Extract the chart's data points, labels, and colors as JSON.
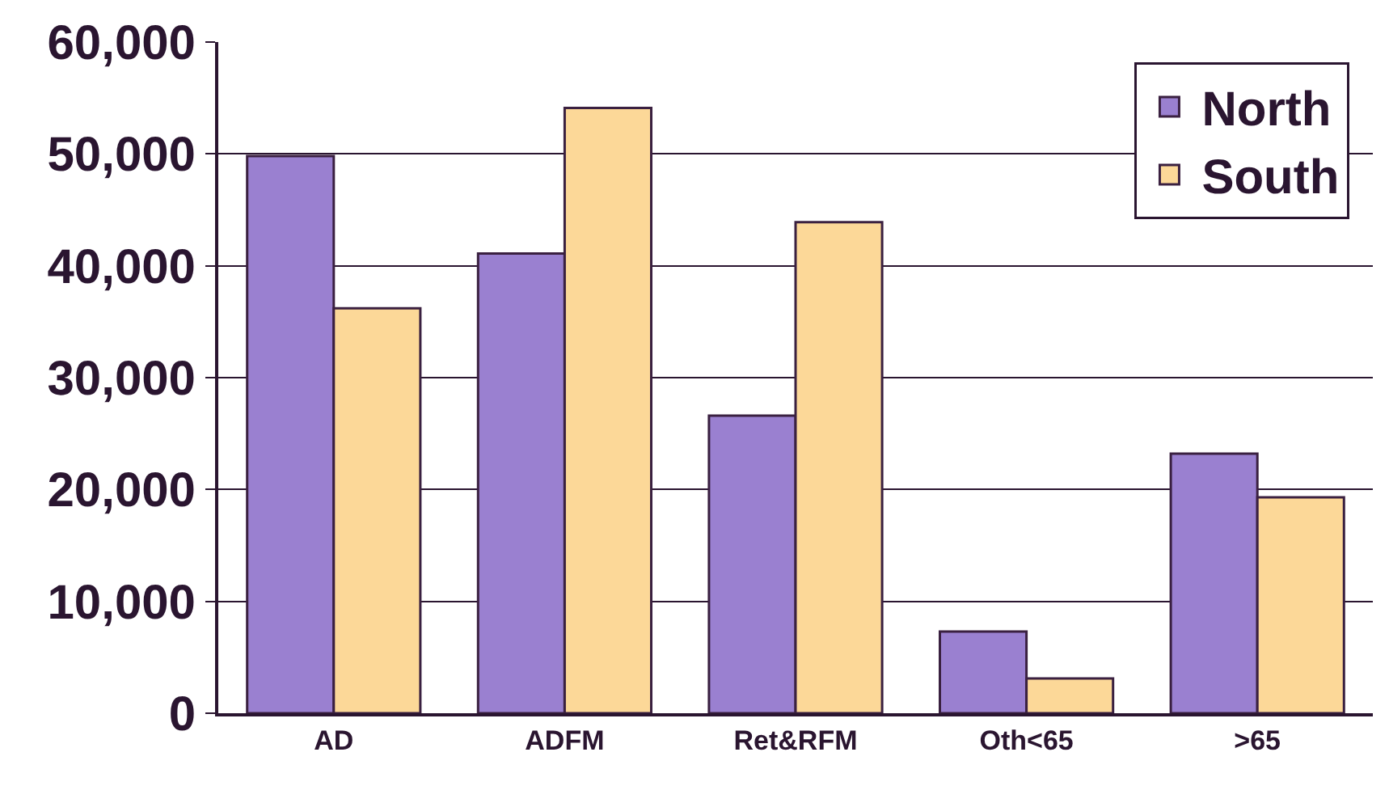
{
  "chart_data": {
    "type": "bar",
    "categories": [
      "AD",
      "ADFM",
      "Ret&RFM",
      "Oth<65",
      ">65"
    ],
    "series": [
      {
        "name": "North",
        "color": "#9a80d0",
        "values": [
          49800,
          41100,
          26600,
          7300,
          23200
        ]
      },
      {
        "name": "South",
        "color": "#fcd898",
        "values": [
          36200,
          54100,
          43900,
          3100,
          19300
        ]
      }
    ],
    "ylim": [
      0,
      60000
    ],
    "yticks": [
      {
        "value": 0,
        "label": "0"
      },
      {
        "value": 10000,
        "label": "10,000"
      },
      {
        "value": 20000,
        "label": "20,000"
      },
      {
        "value": 30000,
        "label": "30,000"
      },
      {
        "value": 40000,
        "label": "40,000"
      },
      {
        "value": 50000,
        "label": "50,000"
      },
      {
        "value": 60000,
        "label": "60,000"
      }
    ],
    "grid": "y",
    "legend": "top right"
  }
}
